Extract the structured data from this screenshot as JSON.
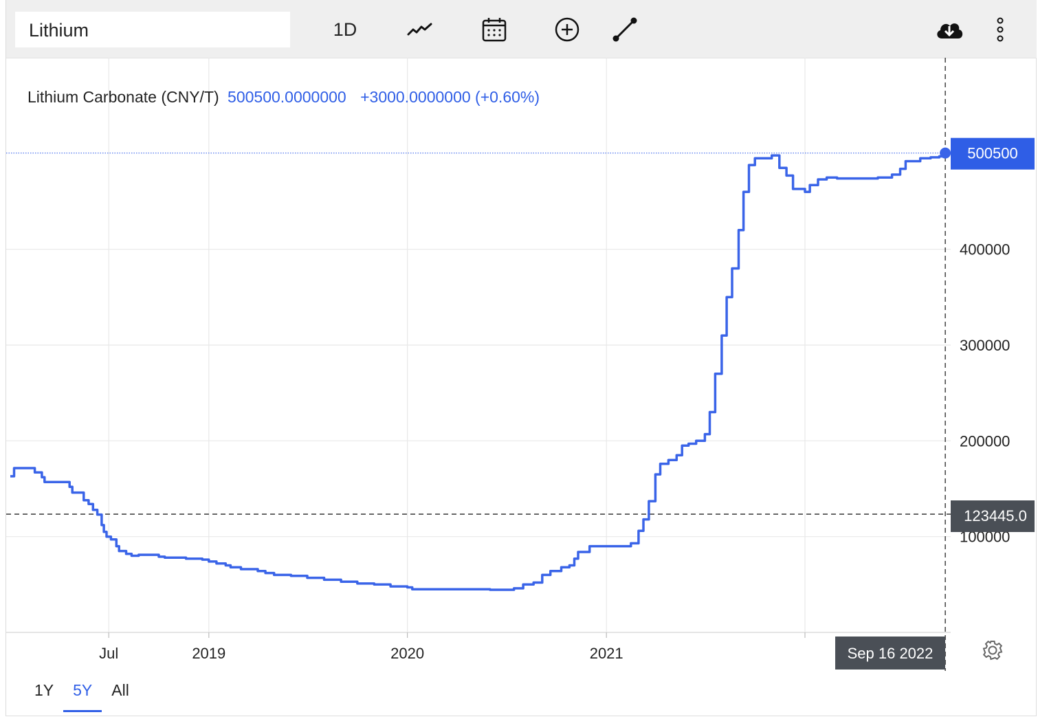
{
  "toolbar": {
    "symbol": "Lithium",
    "interval": "1D"
  },
  "legend": {
    "series_name": "Lithium Carbonate (CNY/T)",
    "last_value": "500500.0000000",
    "change": "+3000.0000000 (+0.60%)"
  },
  "labels": {
    "last_price": "500500",
    "crosshair_price": "123445.0",
    "crosshair_date": "Sep 16 2022"
  },
  "range_buttons": [
    "1Y",
    "5Y",
    "All"
  ],
  "active_range": "5Y",
  "colors": {
    "line": "#3a64e8",
    "badge_blue": "#2f5ee6",
    "badge_dark": "#4a4f56",
    "grid": "#e8e8e8"
  },
  "icons": [
    "line-chart-icon",
    "calendar-icon",
    "add-circle-icon",
    "draw-line-icon",
    "cloud-download-icon",
    "more-vertical-icon",
    "gear-icon"
  ],
  "chart_data": {
    "type": "line",
    "series": [
      {
        "name": "Lithium Carbonate (CNY/T)",
        "points": [
          [
            "2018-01-01",
            163000
          ],
          [
            "2018-01-05",
            163000
          ],
          [
            "2018-01-08",
            171500
          ],
          [
            "2018-01-22",
            171500
          ],
          [
            "2018-02-10",
            171500
          ],
          [
            "2018-02-15",
            167000
          ],
          [
            "2018-02-22",
            167000
          ],
          [
            "2018-02-28",
            162000
          ],
          [
            "2018-03-05",
            157000
          ],
          [
            "2018-04-15",
            157000
          ],
          [
            "2018-04-20",
            152000
          ],
          [
            "2018-04-25",
            146000
          ],
          [
            "2018-05-12",
            146000
          ],
          [
            "2018-05-16",
            138000
          ],
          [
            "2018-05-25",
            134000
          ],
          [
            "2018-06-02",
            128000
          ],
          [
            "2018-06-10",
            123000
          ],
          [
            "2018-06-18",
            112000
          ],
          [
            "2018-06-22",
            105000
          ],
          [
            "2018-06-27",
            100000
          ],
          [
            "2018-07-05",
            97000
          ],
          [
            "2018-07-15",
            90000
          ],
          [
            "2018-07-20",
            85000
          ],
          [
            "2018-07-28",
            85000
          ],
          [
            "2018-08-02",
            82000
          ],
          [
            "2018-08-12",
            80000
          ],
          [
            "2018-08-20",
            80000
          ],
          [
            "2018-08-25",
            81000
          ],
          [
            "2018-09-20",
            81000
          ],
          [
            "2018-10-01",
            79000
          ],
          [
            "2018-10-12",
            78000
          ],
          [
            "2018-11-01",
            78000
          ],
          [
            "2018-11-20",
            77000
          ],
          [
            "2018-12-01",
            77000
          ],
          [
            "2018-12-20",
            76000
          ],
          [
            "2019-01-01",
            74000
          ],
          [
            "2019-01-15",
            72000
          ],
          [
            "2019-02-01",
            70000
          ],
          [
            "2019-02-10",
            68000
          ],
          [
            "2019-03-01",
            66000
          ],
          [
            "2019-04-01",
            64000
          ],
          [
            "2019-04-15",
            62000
          ],
          [
            "2019-05-01",
            60000
          ],
          [
            "2019-06-01",
            59000
          ],
          [
            "2019-07-01",
            57000
          ],
          [
            "2019-08-01",
            55000
          ],
          [
            "2019-09-01",
            53000
          ],
          [
            "2019-10-01",
            51000
          ],
          [
            "2019-11-01",
            50000
          ],
          [
            "2019-12-01",
            48000
          ],
          [
            "2020-01-01",
            47000
          ],
          [
            "2020-01-10",
            45000
          ],
          [
            "2020-02-01",
            45000
          ],
          [
            "2020-04-01",
            45000
          ],
          [
            "2020-06-01",
            44500
          ],
          [
            "2020-07-01",
            44500
          ],
          [
            "2020-07-15",
            46000
          ],
          [
            "2020-08-01",
            50000
          ],
          [
            "2020-08-20",
            52000
          ],
          [
            "2020-09-05",
            60000
          ],
          [
            "2020-09-20",
            64000
          ],
          [
            "2020-10-10",
            68000
          ],
          [
            "2020-10-25",
            70000
          ],
          [
            "2020-11-03",
            77000
          ],
          [
            "2020-11-10",
            84000
          ],
          [
            "2020-12-01",
            90000
          ],
          [
            "2021-01-15",
            90000
          ],
          [
            "2021-02-01",
            90000
          ],
          [
            "2021-02-15",
            93000
          ],
          [
            "2021-03-01",
            106000
          ],
          [
            "2021-03-10",
            118000
          ],
          [
            "2021-03-20",
            137000
          ],
          [
            "2021-04-01",
            165000
          ],
          [
            "2021-04-10",
            176000
          ],
          [
            "2021-04-25",
            180000
          ],
          [
            "2021-05-10",
            185000
          ],
          [
            "2021-05-20",
            195000
          ],
          [
            "2021-06-01",
            197000
          ],
          [
            "2021-06-15",
            200000
          ],
          [
            "2021-07-01",
            207000
          ],
          [
            "2021-07-10",
            230000
          ],
          [
            "2021-07-20",
            270000
          ],
          [
            "2021-08-01",
            310000
          ],
          [
            "2021-08-10",
            350000
          ],
          [
            "2021-08-20",
            380000
          ],
          [
            "2021-09-01",
            420000
          ],
          [
            "2021-09-10",
            460000
          ],
          [
            "2021-09-20",
            488000
          ],
          [
            "2021-10-01",
            495000
          ],
          [
            "2021-11-01",
            498000
          ],
          [
            "2021-11-08",
            498000
          ],
          [
            "2021-11-15",
            485000
          ],
          [
            "2021-11-28",
            477000
          ],
          [
            "2021-12-10",
            463000
          ],
          [
            "2022-01-01",
            460000
          ],
          [
            "2022-01-10",
            467000
          ],
          [
            "2022-01-25",
            473000
          ],
          [
            "2022-02-10",
            475000
          ],
          [
            "2022-03-01",
            474000
          ],
          [
            "2022-03-30",
            474000
          ],
          [
            "2022-05-15",
            475000
          ],
          [
            "2022-06-10",
            478000
          ],
          [
            "2022-06-25",
            484000
          ],
          [
            "2022-07-05",
            492000
          ],
          [
            "2022-08-01",
            495000
          ],
          [
            "2022-08-20",
            496000
          ],
          [
            "2022-09-05",
            497000
          ],
          [
            "2022-09-16",
            500500
          ]
        ]
      }
    ],
    "x_ticks": [
      {
        "date": "2018-07-01",
        "label": "Jul"
      },
      {
        "date": "2019-01-01",
        "label": "2019"
      },
      {
        "date": "2020-01-01",
        "label": "2020"
      },
      {
        "date": "2021-01-01",
        "label": "2021"
      },
      {
        "date": "2022-01-01",
        "label": ""
      }
    ],
    "y_ticks": [
      100000,
      200000,
      300000,
      400000
    ],
    "ylim": [
      0,
      600000
    ],
    "xlim": [
      "2018-01-01",
      "2022-10-01"
    ],
    "last_value": 500500,
    "crosshair": {
      "date": "2022-09-16",
      "value": 123445
    },
    "grid": true
  }
}
